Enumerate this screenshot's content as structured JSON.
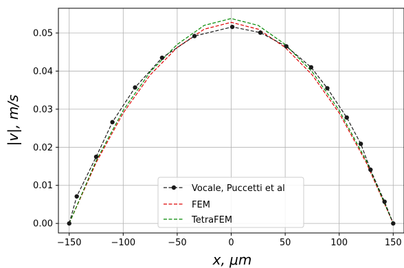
{
  "chart_data": {
    "type": "line",
    "xlabel": "x, μm",
    "ylabel": "|v|, m/s",
    "xlim": [
      -160,
      160
    ],
    "ylim": [
      -0.0025,
      0.0565
    ],
    "xticks": [
      -150,
      -100,
      -50,
      0,
      50,
      100,
      150
    ],
    "xtick_labels": [
      "−150",
      "−100",
      "−50",
      "0",
      "50",
      "100",
      "150"
    ],
    "yticks": [
      0.0,
      0.01,
      0.02,
      0.03,
      0.04,
      0.05
    ],
    "ytick_labels": [
      "0.00",
      "0.01",
      "0.02",
      "0.03",
      "0.04",
      "0.05"
    ],
    "grid": true,
    "legend_position": "bottom-center",
    "series": [
      {
        "name": "Vocale, Puccetti et al",
        "color": "#1a1a1a",
        "style": "dashed",
        "marker": "circle",
        "x": [
          -150,
          -143,
          -125,
          -110,
          -89,
          -64,
          -34,
          1,
          27,
          51,
          74,
          89,
          107,
          120,
          129,
          142,
          150
        ],
        "y": [
          0.0,
          0.0071,
          0.0175,
          0.0266,
          0.0357,
          0.0435,
          0.0492,
          0.0516,
          0.0501,
          0.0465,
          0.041,
          0.0355,
          0.0278,
          0.0209,
          0.0141,
          0.0057,
          0.0
        ]
      },
      {
        "name": "FEM",
        "color": "#dd0000",
        "style": "dashed",
        "marker": "none",
        "x": [
          -150,
          -125,
          -100,
          -75,
          -50,
          -25,
          0,
          25,
          50,
          75,
          100,
          125,
          150
        ],
        "y": [
          0.0,
          0.016,
          0.029,
          0.039,
          0.0462,
          0.051,
          0.0528,
          0.051,
          0.0462,
          0.039,
          0.029,
          0.016,
          0.0
        ]
      },
      {
        "name": "TetraFEM",
        "color": "#008800",
        "style": "dashed",
        "marker": "none",
        "x": [
          -150,
          -125,
          -100,
          -75,
          -50,
          -25,
          0,
          25,
          50,
          75,
          100,
          125,
          150
        ],
        "y": [
          0.0,
          0.0165,
          0.0297,
          0.0398,
          0.047,
          0.052,
          0.0538,
          0.052,
          0.047,
          0.0398,
          0.0297,
          0.0165,
          0.0
        ]
      }
    ]
  }
}
